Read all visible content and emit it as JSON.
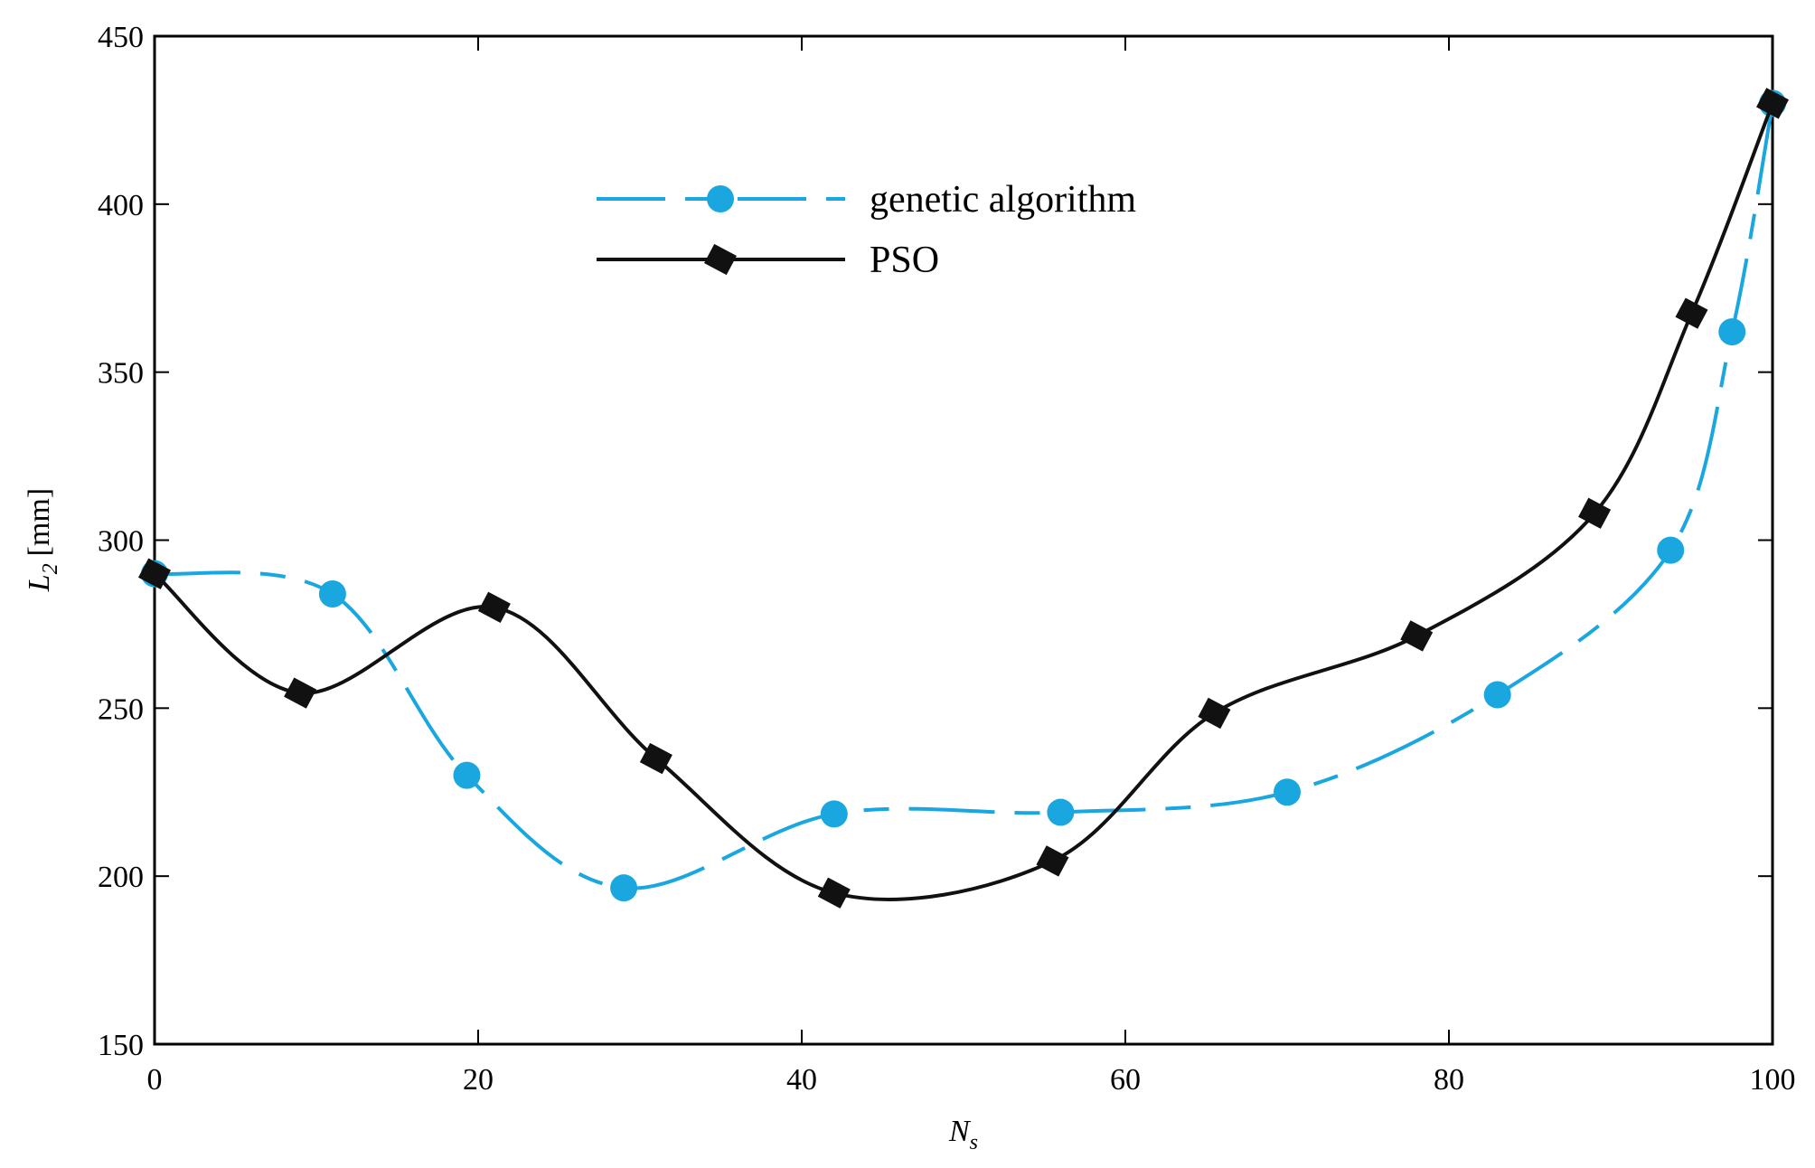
{
  "chart_data": {
    "type": "line",
    "xlabel": {
      "base": "N",
      "sub": "s"
    },
    "ylabel": {
      "base": "L",
      "sub": "2",
      "unit": "[mm]"
    },
    "xlim": [
      0,
      100
    ],
    "ylim": [
      150,
      450
    ],
    "xticks": [
      0,
      20,
      40,
      60,
      80,
      100
    ],
    "yticks": [
      150,
      200,
      250,
      300,
      350,
      400,
      450
    ],
    "legend_position": "upper-center",
    "grid": false,
    "series": [
      {
        "name": "genetic algorithm",
        "color": "#1aa7e0",
        "line_style": "dashed",
        "marker": "circle",
        "x": [
          0,
          11,
          19.3,
          29,
          42,
          56,
          70,
          83,
          93.7,
          97.5,
          100
        ],
        "y": [
          290,
          284,
          230,
          196.5,
          218.5,
          219,
          225,
          254,
          297,
          362,
          430
        ]
      },
      {
        "name": "PSO",
        "color": "#111111",
        "line_style": "solid",
        "marker": "square",
        "x": [
          0,
          9,
          21,
          31,
          42,
          55.5,
          65.5,
          78,
          89,
          95,
          100
        ],
        "y": [
          290,
          254.5,
          280,
          235,
          195,
          204.5,
          248.5,
          271.5,
          308,
          367.5,
          430
        ]
      }
    ]
  }
}
